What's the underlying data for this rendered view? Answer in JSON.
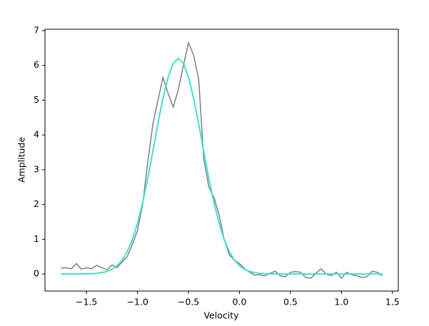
{
  "chart_data": {
    "type": "line",
    "x_label": "Velocity",
    "y_label": "Amplitude",
    "x": [
      -1.75,
      -1.7,
      -1.65,
      -1.6,
      -1.55,
      -1.5,
      -1.45,
      -1.4,
      -1.35,
      -1.3,
      -1.25,
      -1.2,
      -1.15,
      -1.1,
      -1.05,
      -1.0,
      -0.95,
      -0.9,
      -0.85,
      -0.8,
      -0.75,
      -0.7,
      -0.65,
      -0.6,
      -0.55,
      -0.5,
      -0.45,
      -0.4,
      -0.35,
      -0.3,
      -0.25,
      -0.2,
      -0.15,
      -0.1,
      -0.05,
      0.0,
      0.05,
      0.1,
      0.15,
      0.2,
      0.25,
      0.3,
      0.35,
      0.4,
      0.45,
      0.5,
      0.55,
      0.6,
      0.65,
      0.7,
      0.75,
      0.8,
      0.85,
      0.9,
      0.95,
      1.0,
      1.05,
      1.1,
      1.15,
      1.2,
      1.25,
      1.3,
      1.35,
      1.4
    ],
    "series": [
      {
        "color": "#808080",
        "values": [
          0.17,
          0.18,
          0.15,
          0.3,
          0.14,
          0.18,
          0.15,
          0.25,
          0.18,
          0.12,
          0.26,
          0.18,
          0.35,
          0.5,
          0.85,
          1.25,
          2.0,
          3.2,
          4.3,
          5.0,
          5.65,
          5.2,
          4.8,
          5.3,
          6.0,
          6.65,
          6.3,
          5.6,
          3.3,
          2.5,
          2.2,
          1.7,
          1.0,
          0.55,
          0.4,
          0.3,
          0.15,
          0.05,
          -0.03,
          -0.02,
          -0.05,
          0.02,
          0.08,
          -0.05,
          -0.08,
          0.05,
          0.07,
          0.05,
          -0.1,
          -0.12,
          0.02,
          0.15,
          0.0,
          -0.05,
          0.05,
          -0.12,
          0.05,
          -0.02,
          -0.05,
          -0.1,
          -0.08,
          0.08,
          0.05,
          -0.05
        ]
      },
      {
        "color": "#40e0d0",
        "values": [
          0,
          0,
          0,
          0.001,
          0.002,
          0.004,
          0.009,
          0.019,
          0.038,
          0.073,
          0.135,
          0.238,
          0.4,
          0.645,
          0.99,
          1.46,
          2.05,
          2.74,
          3.52,
          4.32,
          5.06,
          5.66,
          6.06,
          6.2,
          6.06,
          5.66,
          5.06,
          4.32,
          3.52,
          2.74,
          2.05,
          1.46,
          0.99,
          0.645,
          0.4,
          0.238,
          0.135,
          0.073,
          0.038,
          0.019,
          0.009,
          0.004,
          0.002,
          0.001,
          0,
          0,
          0,
          0,
          0,
          0,
          0,
          0,
          0,
          0,
          0,
          0,
          0,
          0,
          0,
          0,
          0,
          0,
          0,
          0
        ]
      }
    ],
    "xlim": [
      -1.9075,
      1.5575
    ],
    "ylim": [
      -0.49,
      7.04
    ],
    "xticks": [
      {
        "value": -1.5,
        "label": "−1.5"
      },
      {
        "value": -1.0,
        "label": "−1.0"
      },
      {
        "value": -0.5,
        "label": "−0.5"
      },
      {
        "value": 0.0,
        "label": "0.0"
      },
      {
        "value": 0.5,
        "label": "0.5"
      },
      {
        "value": 1.0,
        "label": "1.0"
      },
      {
        "value": 1.5,
        "label": "1.5"
      }
    ],
    "yticks": [
      0,
      1,
      2,
      3,
      4,
      5,
      6,
      7
    ]
  }
}
